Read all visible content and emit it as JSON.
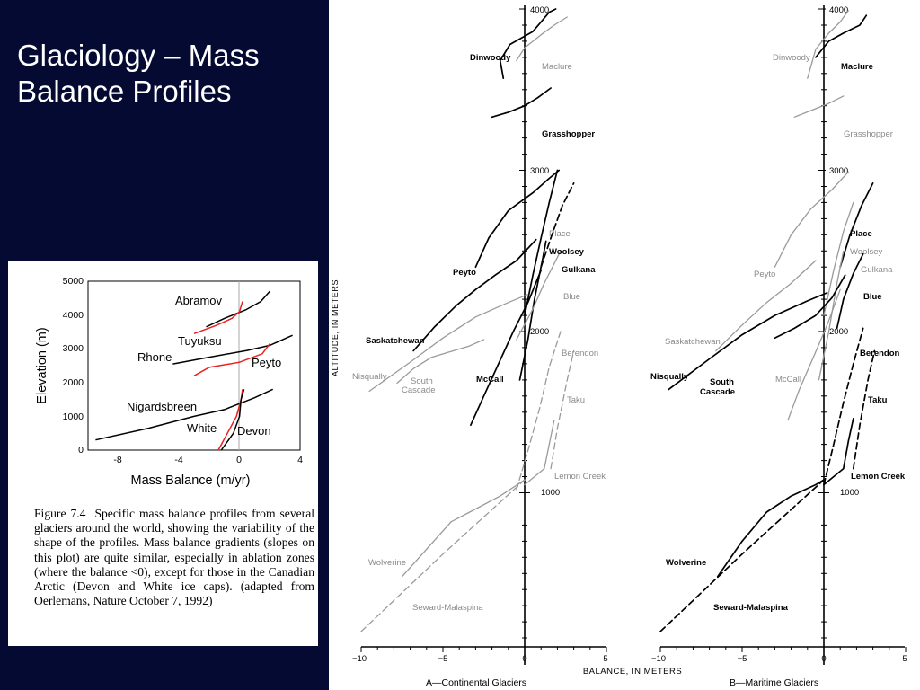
{
  "slide": {
    "title_line1": "Glaciology – Mass",
    "title_line2": "Balance Profiles"
  },
  "colors": {
    "title_panel": "#050a32",
    "title_text": "#ffffff",
    "inset_red_profiles": "#e8201e",
    "profile_black": "#000000",
    "profile_gray": "#9a9a9a"
  },
  "inset": {
    "y_ticks": [
      "5000",
      "4000",
      "3000",
      "2000",
      "1000",
      "0"
    ],
    "x_ticks": [
      "-8",
      "-4",
      "0",
      "4"
    ],
    "ylabel": "Elevation (m)",
    "xlabel": "Mass Balance (m/yr)",
    "labels": {
      "abramov": "Abramov",
      "tuyuksu": "Tuyuksu",
      "rhone": "Rhone",
      "peyto": "Peyto",
      "nigardsbreen": "Nigardsbreen",
      "white": "White",
      "devon": "Devon"
    },
    "caption_number": "Figure 7.4",
    "caption_text": "Specific mass balance profiles from several glaciers around the world, showing the variability of the shape of the profiles. Mass balance gradients (slopes on this plot) are quite similar, especially in ablation zones (where the balance <0), except for those in the Canadian Arctic (Devon and White ice caps). (adapted from Oerlemans, Nature October 7, 1992)"
  },
  "chart_data": [
    {
      "type": "line",
      "panel": "inset",
      "xlabel": "Mass Balance (m/yr)",
      "ylabel": "Elevation (m)",
      "xlim": [
        -10,
        4
      ],
      "ylim": [
        0,
        5000
      ],
      "series": [
        {
          "name": "Abramov",
          "color": "#000000",
          "x": [
            -2.2,
            -1.0,
            0.4,
            1.4,
            2.0
          ],
          "y": [
            3650,
            3900,
            4150,
            4400,
            4700
          ]
        },
        {
          "name": "Tuyuksu",
          "color": "#e8201e",
          "x": [
            -3.0,
            -1.5,
            -0.5,
            0.0,
            0.2
          ],
          "y": [
            3450,
            3700,
            3900,
            4100,
            4400
          ]
        },
        {
          "name": "Rhone",
          "color": "#000000",
          "x": [
            -4.4,
            -2.0,
            0.5,
            2.0,
            3.5
          ],
          "y": [
            2550,
            2750,
            2950,
            3100,
            3400
          ]
        },
        {
          "name": "Peyto",
          "color": "#e8201e",
          "x": [
            -3.0,
            -2.0,
            0.0,
            1.5,
            2.0
          ],
          "y": [
            2200,
            2450,
            2600,
            2850,
            3150
          ]
        },
        {
          "name": "Nigardsbreen",
          "color": "#000000",
          "x": [
            -9.5,
            -6.0,
            -3.0,
            -1.0,
            1.0,
            2.2
          ],
          "y": [
            300,
            650,
            1000,
            1200,
            1550,
            1800
          ]
        },
        {
          "name": "White",
          "color": "#e8201e",
          "x": [
            -1.4,
            -0.8,
            -0.2,
            0.1,
            0.2
          ],
          "y": [
            0,
            500,
            1000,
            1500,
            1800
          ]
        },
        {
          "name": "Devon",
          "color": "#000000",
          "x": [
            -1.2,
            -0.4,
            0.0,
            0.1,
            0.3
          ],
          "y": [
            0,
            500,
            1000,
            1500,
            1800
          ]
        }
      ]
    },
    {
      "type": "line",
      "panel": "A",
      "title": "A—Continental Glaciers",
      "xlabel": "BALANCE, IN METERS",
      "ylabel": "ALTITUDE, IN METERS",
      "xlim": [
        -10,
        5
      ],
      "ylim": [
        0,
        4000
      ],
      "x_ticks": [
        "−10",
        "−5",
        "0",
        "5"
      ],
      "y_tick_labels": [
        "1000",
        "2000",
        "3000",
        "4000"
      ],
      "series": [
        {
          "name": "Dinwoody",
          "color": "#000000",
          "style": "solid",
          "x": [
            -1.3,
            -1.5,
            -0.9,
            0.5,
            1.0,
            1.5,
            1.9
          ],
          "y": [
            3570,
            3680,
            3780,
            3860,
            3920,
            3980,
            4000
          ]
        },
        {
          "name": "Maclure",
          "color": "#9a9a9a",
          "style": "solid",
          "x": [
            -0.5,
            0.0,
            1.0,
            1.8,
            2.6
          ],
          "y": [
            3680,
            3760,
            3840,
            3900,
            3950
          ]
        },
        {
          "name": "Grasshopper",
          "color": "#000000",
          "style": "solid",
          "x": [
            -2.0,
            -1.0,
            0.0,
            0.8,
            1.6
          ],
          "y": [
            3330,
            3360,
            3400,
            3450,
            3510
          ]
        },
        {
          "name": "Place",
          "color": "#000000",
          "style": "dashed",
          "x": [
            1.0,
            1.6,
            2.3,
            3.0
          ],
          "y": [
            2400,
            2580,
            2780,
            2920
          ]
        },
        {
          "name": "Woolsey",
          "color": "#000000",
          "style": "solid",
          "x": [
            0.0,
            0.5,
            1.0,
            1.5,
            2.0
          ],
          "y": [
            2100,
            2350,
            2580,
            2800,
            3000
          ]
        },
        {
          "name": "Gulkana",
          "color": "#000000",
          "style": "solid",
          "x": [
            -0.3,
            0.2,
            0.6,
            1.1,
            1.3
          ],
          "y": [
            1700,
            1950,
            2200,
            2450,
            2560
          ]
        },
        {
          "name": "Peyto",
          "color": "#000000",
          "style": "solid",
          "x": [
            -3.0,
            -2.2,
            -1.0,
            0.5,
            1.5,
            2.1
          ],
          "y": [
            2400,
            2580,
            2750,
            2860,
            2950,
            3000
          ]
        },
        {
          "name": "Blue",
          "color": "#9a9a9a",
          "style": "solid",
          "x": [
            -0.5,
            0.5,
            1.2,
            1.8,
            2.2
          ],
          "y": [
            1950,
            2140,
            2300,
            2420,
            2500
          ]
        },
        {
          "name": "Saskatchewan",
          "color": "#000000",
          "style": "solid",
          "x": [
            -6.8,
            -5.5,
            -4.2,
            -3.0,
            -1.8,
            -0.5,
            0.7
          ],
          "y": [
            1880,
            2030,
            2160,
            2260,
            2350,
            2440,
            2570
          ]
        },
        {
          "name": "Nisqually",
          "color": "#9a9a9a",
          "style": "solid",
          "x": [
            -9.5,
            -7.0,
            -5.0,
            -3.0,
            -1.0,
            0.2
          ],
          "y": [
            1630,
            1810,
            1960,
            2090,
            2180,
            2230
          ]
        },
        {
          "name": "South Cascade",
          "color": "#9a9a9a",
          "style": "solid",
          "x": [
            -7.8,
            -6.8,
            -5.7,
            -4.7,
            -3.4,
            -2.5
          ],
          "y": [
            1680,
            1770,
            1840,
            1870,
            1910,
            1950
          ]
        },
        {
          "name": "McCall",
          "color": "#000000",
          "style": "solid",
          "x": [
            -3.3,
            -2.5,
            -1.6,
            -0.7,
            0.2,
            1.0
          ],
          "y": [
            1420,
            1600,
            1800,
            2000,
            2180,
            2380
          ]
        },
        {
          "name": "Berendon",
          "color": "#9a9a9a",
          "style": "dashed",
          "x": [
            -0.5,
            0.2,
            0.9,
            1.5,
            2.2
          ],
          "y": [
            1020,
            1260,
            1520,
            1780,
            2000
          ]
        },
        {
          "name": "Taku",
          "color": "#9a9a9a",
          "style": "dashed",
          "x": [
            1.6,
            2.0,
            2.6,
            3.0
          ],
          "y": [
            1150,
            1400,
            1700,
            1880
          ]
        },
        {
          "name": "Lemon Creek",
          "color": "#9a9a9a",
          "style": "solid",
          "x": [
            0.0,
            1.2,
            1.5,
            1.8
          ],
          "y": [
            1050,
            1150,
            1300,
            1450
          ]
        },
        {
          "name": "Wolverine",
          "color": "#9a9a9a",
          "style": "solid",
          "x": [
            -7.5,
            -6.0,
            -4.5,
            -3.0,
            -1.5,
            0.0
          ],
          "y": [
            480,
            650,
            820,
            900,
            980,
            1080
          ]
        },
        {
          "name": "Seward-Malaspina",
          "color": "#9a9a9a",
          "style": "dashed",
          "x": [
            -10.0,
            -7.5,
            -5.0,
            -2.5,
            0.0
          ],
          "y": [
            140,
            380,
            620,
            850,
            1080
          ]
        }
      ]
    },
    {
      "type": "line",
      "panel": "B",
      "title": "B—Maritime Glaciers",
      "xlabel": "BALANCE, IN METERS",
      "ylabel": "ALTITUDE, IN METERS",
      "xlim": [
        -10,
        5
      ],
      "ylim": [
        0,
        4000
      ],
      "x_ticks": [
        "−10",
        "−5",
        "0",
        "5"
      ],
      "y_tick_labels": [
        "1000",
        "2000",
        "3000",
        "4000"
      ],
      "series": [
        {
          "name": "Dinwoody",
          "color": "#9a9a9a",
          "style": "solid",
          "x": [
            -1.0,
            -0.5,
            0.3,
            1.0,
            1.5
          ],
          "y": [
            3570,
            3750,
            3850,
            3920,
            3990
          ]
        },
        {
          "name": "Maclure",
          "color": "#000000",
          "style": "solid",
          "x": [
            -0.5,
            0.3,
            1.2,
            2.2,
            2.6
          ],
          "y": [
            3700,
            3800,
            3850,
            3900,
            3960
          ]
        },
        {
          "name": "Grasshopper",
          "color": "#9a9a9a",
          "style": "solid",
          "x": [
            -1.8,
            -0.8,
            0.2,
            1.2
          ],
          "y": [
            3330,
            3370,
            3410,
            3460
          ]
        },
        {
          "name": "Place",
          "color": "#000000",
          "style": "solid",
          "x": [
            1.0,
            1.6,
            2.3,
            3.0
          ],
          "y": [
            2400,
            2600,
            2780,
            2920
          ]
        },
        {
          "name": "Woolsey",
          "color": "#9a9a9a",
          "style": "solid",
          "x": [
            0.0,
            0.6,
            1.2,
            1.8
          ],
          "y": [
            2100,
            2380,
            2620,
            2800
          ]
        },
        {
          "name": "Gulkana",
          "color": "#9a9a9a",
          "style": "solid",
          "x": [
            -0.3,
            0.3,
            0.8,
            1.2
          ],
          "y": [
            1700,
            2000,
            2300,
            2500
          ]
        },
        {
          "name": "Peyto",
          "color": "#9a9a9a",
          "style": "solid",
          "x": [
            -3.0,
            -2.0,
            -0.8,
            0.5,
            1.5
          ],
          "y": [
            2400,
            2600,
            2760,
            2880,
            2990
          ]
        },
        {
          "name": "Blue",
          "color": "#000000",
          "style": "solid",
          "x": [
            0.8,
            1.2,
            1.8,
            2.4
          ],
          "y": [
            2020,
            2200,
            2360,
            2480
          ]
        },
        {
          "name": "Saskatchewan",
          "color": "#9a9a9a",
          "style": "solid",
          "x": [
            -6.6,
            -5.0,
            -3.5,
            -2.0,
            -0.5
          ],
          "y": [
            1880,
            2040,
            2180,
            2300,
            2440
          ]
        },
        {
          "name": "Nisqually",
          "color": "#000000",
          "style": "solid",
          "x": [
            -9.5,
            -7.0,
            -5.0,
            -3.0,
            -1.0,
            0.2
          ],
          "y": [
            1640,
            1830,
            1980,
            2100,
            2190,
            2240
          ]
        },
        {
          "name": "South Cascade",
          "color": "#000000",
          "style": "solid",
          "x": [
            -3.0,
            -1.8,
            -0.5,
            0.5,
            1.3
          ],
          "y": [
            1960,
            2020,
            2100,
            2210,
            2350
          ]
        },
        {
          "name": "McCall",
          "color": "#9a9a9a",
          "style": "solid",
          "x": [
            -2.2,
            -1.5,
            -0.6,
            0.2,
            1.0
          ],
          "y": [
            1450,
            1640,
            1850,
            2040,
            2260
          ]
        },
        {
          "name": "Berendon",
          "color": "#000000",
          "style": "dashed",
          "x": [
            0.0,
            0.6,
            1.2,
            1.8,
            2.4
          ],
          "y": [
            1050,
            1300,
            1560,
            1800,
            2020
          ]
        },
        {
          "name": "Taku",
          "color": "#000000",
          "style": "dashed",
          "x": [
            1.8,
            2.2,
            2.7,
            3.1
          ],
          "y": [
            1150,
            1420,
            1700,
            1880
          ]
        },
        {
          "name": "Lemon Creek",
          "color": "#000000",
          "style": "solid",
          "x": [
            0.0,
            1.2,
            1.5,
            1.8
          ],
          "y": [
            1050,
            1150,
            1320,
            1460
          ]
        },
        {
          "name": "Wolverine",
          "color": "#000000",
          "style": "solid",
          "x": [
            -6.5,
            -5.0,
            -3.5,
            -2.0,
            -0.5,
            0.0
          ],
          "y": [
            480,
            700,
            880,
            980,
            1050,
            1080
          ]
        },
        {
          "name": "Seward-Malaspina",
          "color": "#000000",
          "style": "dashed",
          "x": [
            -10.0,
            -7.5,
            -5.0,
            -2.5,
            0.0
          ],
          "y": [
            140,
            380,
            620,
            850,
            1080
          ]
        }
      ]
    }
  ],
  "panelA": {
    "caption": "A—Continental Glaciers",
    "labels": {
      "dinwoody": "Dinwoody",
      "maclure": "Maclure",
      "grasshopper": "Grasshopper",
      "place": "Place",
      "woolsey": "Woolsey",
      "gulkana": "Gulkana",
      "peyto": "Peyto",
      "blue": "Blue",
      "saskatchewan": "Saskatchewan",
      "nisqually": "Nisqually",
      "south": "South",
      "cascade": "Cascade",
      "mccall": "McCall",
      "berendon": "Berendon",
      "taku": "Taku",
      "lemon_creek": "Lemon Creek",
      "wolverine": "Wolverine",
      "seward": "Seward-Malaspina"
    }
  },
  "panelB": {
    "caption": "B—Maritime Glaciers",
    "labels": {
      "dinwoody": "Dinwoody",
      "maclure": "Maclure",
      "grasshopper": "Grasshopper",
      "place": "Place",
      "woolsey": "Woolsey",
      "gulkana": "Gulkana",
      "peyto": "Peyto",
      "blue": "Blue",
      "saskatchewan": "Saskatchewan",
      "nisqually": "Nisqually",
      "south": "South",
      "cascade": "Cascade",
      "mccall": "McCall",
      "berendon": "Berendon",
      "taku": "Taku",
      "lemon_creek": "Lemon Creek",
      "wolverine": "Wolverine",
      "seward": "Seward-Malaspina"
    }
  },
  "axes": {
    "ylabel": "ALTITUDE, IN METERS",
    "xlabel": "BALANCE, IN METERS",
    "y_ticks": [
      "4000",
      "3000",
      "2000",
      "1000"
    ],
    "x_ticks": [
      "−10",
      "−5",
      "0",
      "5"
    ]
  }
}
